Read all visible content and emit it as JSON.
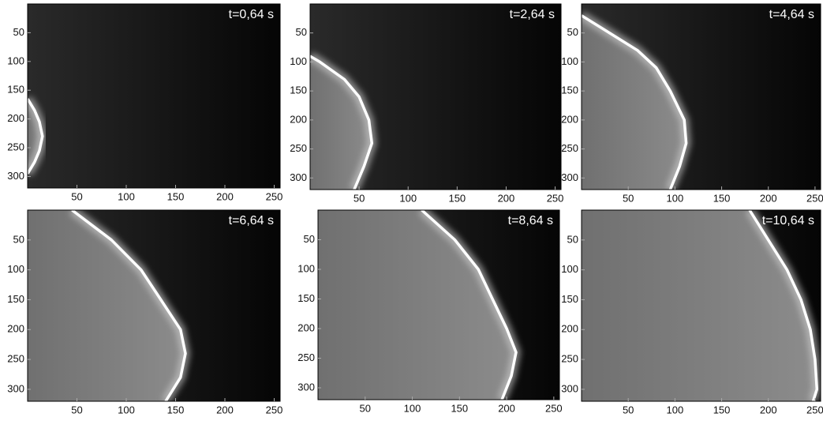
{
  "chart_data": [
    {
      "type": "image",
      "annotation": "t=0,64 s",
      "xlim": [
        0,
        256
      ],
      "ylim": [
        320,
        0
      ],
      "xticks": [
        50,
        100,
        150,
        200,
        250
      ],
      "yticks": [
        50,
        100,
        150,
        200,
        250,
        300
      ],
      "front": {
        "y": [
          165,
          185,
          205,
          230,
          255,
          275,
          295
        ],
        "x": [
          0,
          7,
          12,
          15,
          12,
          7,
          0
        ]
      }
    },
    {
      "type": "image",
      "annotation": "t=2,64 s",
      "xlim": [
        0,
        256
      ],
      "ylim": [
        320,
        0
      ],
      "xticks": [
        50,
        100,
        150,
        200,
        250
      ],
      "yticks": [
        50,
        100,
        150,
        200,
        250,
        300
      ],
      "front": {
        "y": [
          90,
          100,
          130,
          160,
          200,
          240,
          280,
          320
        ],
        "x": [
          0,
          10,
          35,
          50,
          60,
          63,
          55,
          45
        ]
      }
    },
    {
      "type": "image",
      "annotation": "t=4,64 s",
      "xlim": [
        0,
        256
      ],
      "ylim": [
        320,
        0
      ],
      "xticks": [
        50,
        100,
        150,
        200,
        250
      ],
      "yticks": [
        50,
        100,
        150,
        200,
        250,
        300
      ],
      "front": {
        "y": [
          20,
          50,
          80,
          110,
          150,
          200,
          240,
          280,
          320
        ],
        "x": [
          0,
          30,
          60,
          80,
          95,
          110,
          112,
          105,
          95
        ]
      }
    },
    {
      "type": "image",
      "annotation": "t=6,64 s",
      "xlim": [
        0,
        256
      ],
      "ylim": [
        320,
        0
      ],
      "xticks": [
        50,
        100,
        150,
        200,
        250
      ],
      "yticks": [
        50,
        100,
        150,
        200,
        250,
        300
      ],
      "front": {
        "y": [
          0,
          50,
          100,
          150,
          200,
          240,
          280,
          320
        ],
        "x": [
          45,
          85,
          115,
          135,
          155,
          160,
          155,
          140
        ]
      }
    },
    {
      "type": "image",
      "annotation": "t=8,64 s",
      "xlim": [
        0,
        256
      ],
      "ylim": [
        320,
        0
      ],
      "xticks": [
        50,
        100,
        150,
        200,
        250
      ],
      "yticks": [
        50,
        100,
        150,
        200,
        250,
        300
      ],
      "front": {
        "y": [
          0,
          50,
          100,
          150,
          200,
          240,
          280,
          320
        ],
        "x": [
          110,
          145,
          170,
          185,
          200,
          210,
          205,
          195
        ]
      }
    },
    {
      "type": "image",
      "annotation": "t=10,64 s",
      "xlim": [
        0,
        256
      ],
      "ylim": [
        320,
        0
      ],
      "xticks": [
        50,
        100,
        150,
        200,
        250
      ],
      "yticks": [
        50,
        100,
        150,
        200,
        250,
        300
      ],
      "front": {
        "y": [
          0,
          50,
          100,
          150,
          200,
          250,
          300,
          320
        ],
        "x": [
          180,
          200,
          220,
          235,
          245,
          250,
          252,
          248
        ]
      }
    }
  ]
}
